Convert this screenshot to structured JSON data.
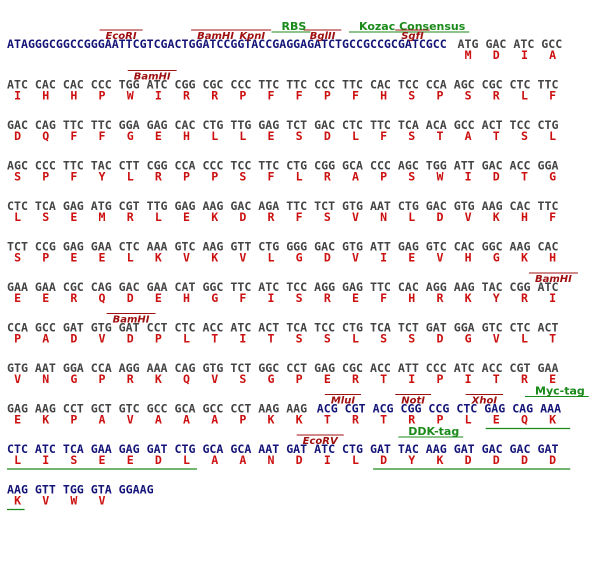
{
  "lines": [
    {
      "annotations": [
        {
          "label": "RBS",
          "color": "#1a8a1a"
        },
        {
          "label": "Kozac Consensus",
          "color": "#1a8a1a"
        },
        {
          "label": "EcoRI",
          "color": "#a01010"
        },
        {
          "label": "BamHI",
          "color": "#a01010"
        },
        {
          "label": "KpnI",
          "color": "#a01010"
        },
        {
          "label": "BglII",
          "color": "#a01010"
        },
        {
          "label": "SgfI",
          "color": "#a01010"
        }
      ],
      "segments": [
        {
          "color": "#141478",
          "text": "ATAGGGCGGCCGGGAATTCGTCGACTGGATCCGGTACCGAGGAGATCTGCCGCCGCGATCGCC"
        },
        {
          "color": "#444444",
          "text": "ATG GAC ATC GCC",
          "aa": [
            "M",
            "D",
            "I",
            "A"
          ]
        }
      ]
    },
    {
      "annotations": [
        {
          "label": "BamHI",
          "color": "#a01010"
        }
      ],
      "segments": [
        {
          "color": "#444444",
          "text": "ATC CAC CAC CCC TGG ATC CGG CGC CCC TTC TTC CCC TTC CAC TCC CCA AGC CGC CTC TTC",
          "aa": [
            "I",
            "H",
            "H",
            "P",
            "W",
            "I",
            "R",
            "R",
            "P",
            "F",
            "F",
            "P",
            "F",
            "H",
            "S",
            "P",
            "S",
            "R",
            "L",
            "F"
          ]
        }
      ]
    },
    {
      "annotations": [],
      "segments": [
        {
          "color": "#444444",
          "text": "GAC CAG TTC TTC GGA GAG CAC CTG TTG GAG TCT GAC CTC TTC TCA ACA GCC ACT TCC CTG",
          "aa": [
            "D",
            "Q",
            "F",
            "F",
            "G",
            "E",
            "H",
            "L",
            "L",
            "E",
            "S",
            "D",
            "L",
            "F",
            "S",
            "T",
            "A",
            "T",
            "S",
            "L"
          ]
        }
      ]
    },
    {
      "annotations": [],
      "segments": [
        {
          "color": "#444444",
          "text": "AGC CCC TTC TAC CTT CGG CCA CCC TCC TTC CTG CGG GCA CCC AGC TGG ATT GAC ACC GGA",
          "aa": [
            "S",
            "P",
            "F",
            "Y",
            "L",
            "R",
            "P",
            "P",
            "S",
            "F",
            "L",
            "R",
            "A",
            "P",
            "S",
            "W",
            "I",
            "D",
            "T",
            "G"
          ]
        }
      ]
    },
    {
      "annotations": [],
      "segments": [
        {
          "color": "#444444",
          "text": "CTC TCA GAG ATG CGT TTG GAG AAG GAC AGA TTC TCT GTG AAT CTG GAC GTG AAG CAC TTC",
          "aa": [
            "L",
            "S",
            "E",
            "M",
            "R",
            "L",
            "E",
            "K",
            "D",
            "R",
            "F",
            "S",
            "V",
            "N",
            "L",
            "D",
            "V",
            "K",
            "H",
            "F"
          ]
        }
      ]
    },
    {
      "annotations": [],
      "segments": [
        {
          "color": "#444444",
          "text": "TCT CCG GAG GAA CTC AAA GTC AAG GTT CTG GGG GAC GTG ATT GAG GTC CAC GGC AAG CAC",
          "aa": [
            "S",
            "P",
            "E",
            "E",
            "L",
            "K",
            "V",
            "K",
            "V",
            "L",
            "G",
            "D",
            "V",
            "I",
            "E",
            "V",
            "H",
            "G",
            "K",
            "H"
          ]
        }
      ]
    },
    {
      "annotations": [
        {
          "label": "BamHI",
          "color": "#a01010"
        }
      ],
      "segments": [
        {
          "color": "#444444",
          "text": "GAA GAA CGC CAG GAC GAA CAT GGC TTC ATC TCC AGG GAG TTC CAC AGG AAG TAC CGG ATC",
          "aa": [
            "E",
            "E",
            "R",
            "Q",
            "D",
            "E",
            "H",
            "G",
            "F",
            "I",
            "S",
            "R",
            "E",
            "F",
            "H",
            "R",
            "K",
            "Y",
            "R",
            "I"
          ]
        }
      ]
    },
    {
      "annotations": [
        {
          "label": "BamHI",
          "color": "#a01010"
        }
      ],
      "segments": [
        {
          "color": "#444444",
          "text": "CCA GCC GAT GTG GAT CCT CTC ACC ATC ACT TCA TCC CTG TCA TCT GAT GGA GTC CTC ACT",
          "aa": [
            "P",
            "A",
            "D",
            "V",
            "D",
            "P",
            "L",
            "T",
            "I",
            "T",
            "S",
            "S",
            "L",
            "S",
            "S",
            "D",
            "G",
            "V",
            "L",
            "T"
          ]
        }
      ]
    },
    {
      "annotations": [],
      "segments": [
        {
          "color": "#444444",
          "text": "GTG AAT GGA CCA AGG AAA CAG GTG TCT GGC CCT GAG CGC ACC ATT CCC ATC ACC CGT GAA",
          "aa": [
            "V",
            "N",
            "G",
            "P",
            "R",
            "K",
            "Q",
            "V",
            "S",
            "G",
            "P",
            "E",
            "R",
            "T",
            "I",
            "P",
            "I",
            "T",
            "R",
            "E"
          ]
        }
      ]
    },
    {
      "annotations": [
        {
          "label": "MluI",
          "color": "#a01010"
        },
        {
          "label": "NotI",
          "color": "#a01010"
        },
        {
          "label": "XhoI",
          "color": "#a01010"
        },
        {
          "label": "Myc-tag",
          "color": "#1a8a1a"
        }
      ],
      "segments": [
        {
          "color": "#444444",
          "text": "GAG AAG CCT GCT GTC GCC GCA GCC CCT AAG AAG",
          "aa": [
            "E",
            "K",
            "P",
            "A",
            "V",
            "A",
            "A",
            "A",
            "P",
            "K",
            "K"
          ]
        },
        {
          "color": "#141478",
          "text": "ACG CGT ACG CGG CCG CTC GAG CAG AAA",
          "aa": [
            "T",
            "R",
            "T",
            "R",
            "P",
            "L",
            "E",
            "Q",
            "K"
          ]
        }
      ]
    },
    {
      "annotations": [
        {
          "label": "EcoRV",
          "color": "#a01010"
        },
        {
          "label": "DDK-tag",
          "color": "#1a8a1a"
        }
      ],
      "segments": [
        {
          "color": "#141478",
          "text": "CTC ATC TCA GAA GAG GAT CTG GCA GCA AAT GAT ATC CTG GAT TAC AAG GAT GAC GAC GAT",
          "aa": [
            "L",
            "I",
            "S",
            "E",
            "E",
            "D",
            "L",
            "A",
            "A",
            "N",
            "D",
            "I",
            "L",
            "D",
            "Y",
            "K",
            "D",
            "D",
            "D",
            "D"
          ]
        }
      ]
    },
    {
      "annotations": [],
      "segments": [
        {
          "color": "#141478",
          "text": "AAG GTT TGG GTA GGAAG",
          "aa": [
            "K",
            "V",
            "W",
            "V"
          ]
        }
      ]
    }
  ]
}
